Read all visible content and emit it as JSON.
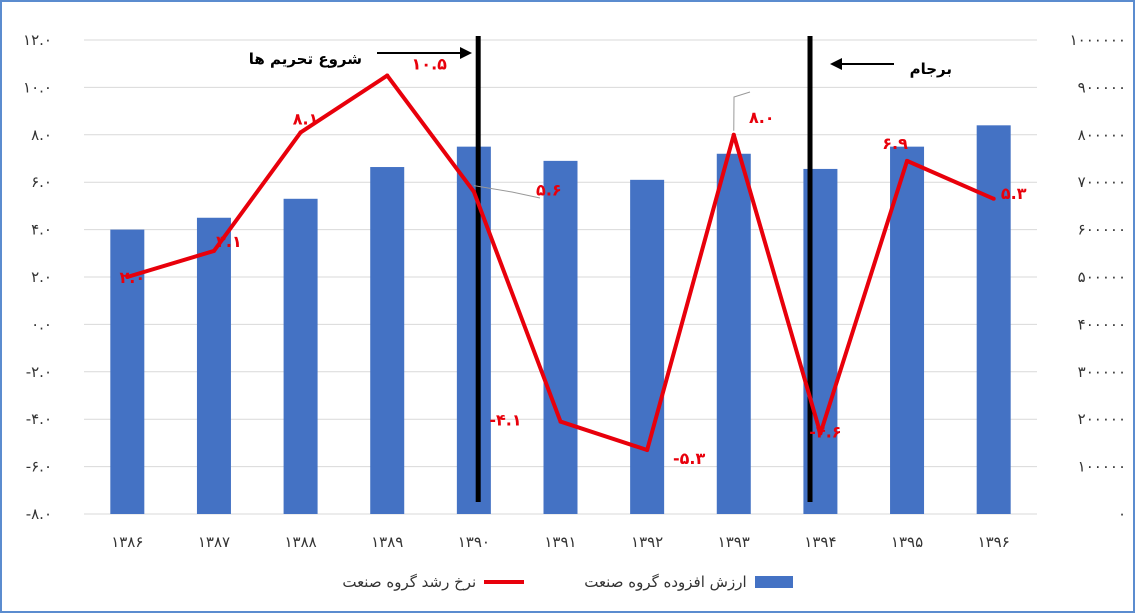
{
  "chart_data": {
    "type": "bar+line",
    "categories": [
      "۱۳۸۶",
      "۱۳۸۷",
      "۱۳۸۸",
      "۱۳۸۹",
      "۱۳۹۰",
      "۱۳۹۱",
      "۱۳۹۲",
      "۱۳۹۳",
      "۱۳۹۴",
      "۱۳۹۵",
      "۱۳۹۶"
    ],
    "series": [
      {
        "name": "ارزش افزوده گروه صنعت",
        "type": "bar",
        "axis": "right",
        "color": "#4472c4",
        "values": [
          600000,
          625000,
          665000,
          732000,
          775000,
          745000,
          705000,
          760000,
          728000,
          775000,
          820000
        ]
      },
      {
        "name": "نرخ رشد گروه صنعت",
        "type": "line",
        "axis": "left",
        "color": "#e8000b",
        "values": [
          2.0,
          3.1,
          8.1,
          10.5,
          5.6,
          -4.1,
          -5.3,
          8.0,
          -4.6,
          6.9,
          5.3
        ],
        "labels": [
          "۲.۰",
          "۳.۱",
          "۸.۱",
          "۱۰.۵",
          "۵.۶",
          "-۴.۱",
          "-۵.۳",
          "۸.۰",
          "-۴.۶",
          "۶.۹",
          "۵.۳"
        ]
      }
    ],
    "left_axis": {
      "ylim": [
        -8,
        12
      ],
      "tick_values": [
        12,
        10,
        8,
        6,
        4,
        2,
        0,
        -2,
        -4,
        -6,
        -8
      ],
      "tick_labels": [
        "۱۲.۰",
        "۱۰.۰",
        "۸.۰",
        "۶.۰",
        "۴.۰",
        "۲.۰",
        "۰.۰",
        "-۲.۰",
        "-۴.۰",
        "-۶.۰",
        "-۸.۰"
      ]
    },
    "right_axis": {
      "ylim": [
        0,
        1000000
      ],
      "tick_values": [
        1000000,
        900000,
        800000,
        700000,
        600000,
        500000,
        400000,
        300000,
        200000,
        100000,
        0
      ],
      "tick_labels": [
        "۱۰۰۰۰۰۰",
        "۹۰۰۰۰۰",
        "۸۰۰۰۰۰",
        "۷۰۰۰۰۰",
        "۶۰۰۰۰۰",
        "۵۰۰۰۰۰",
        "۴۰۰۰۰۰",
        "۳۰۰۰۰۰",
        "۲۰۰۰۰۰",
        "۱۰۰۰۰۰",
        "۰"
      ]
    },
    "grid": true,
    "legend_position": "bottom",
    "annotations": [
      {
        "text": "شروع تحریم ها",
        "after_category": "۱۳۸۹"
      },
      {
        "text": "برجام",
        "after_category": "۱۳۹۴"
      }
    ]
  },
  "legend": {
    "bar_label": "ارزش افزوده گروه صنعت",
    "line_label": "نرخ رشد گروه صنعت"
  }
}
